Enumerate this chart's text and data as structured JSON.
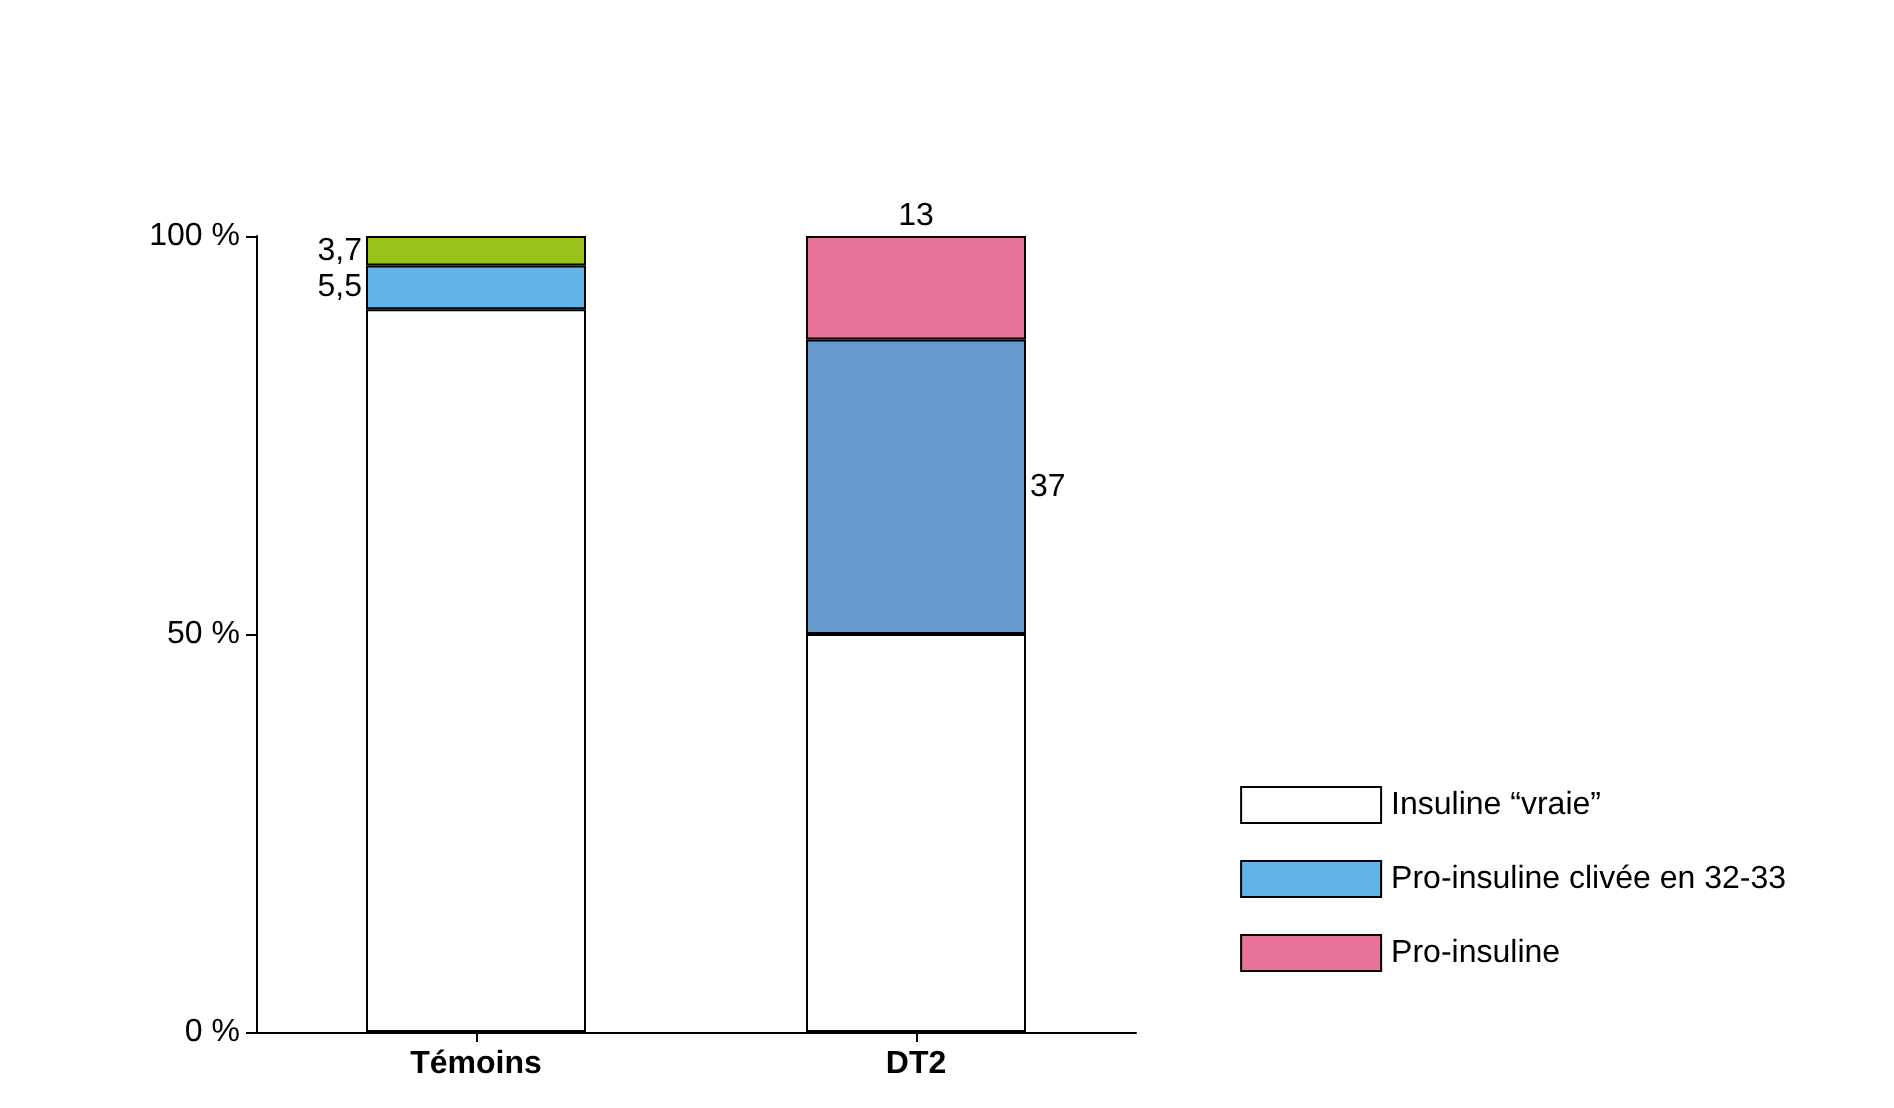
{
  "chart_data": {
    "type": "bar",
    "stacked": true,
    "categories": [
      "Témoins",
      "DT2"
    ],
    "series": [
      {
        "name": "Insuline “vraie”",
        "color": "#ffffff",
        "values": [
          90.8,
          50
        ],
        "value_labels": [
          null,
          null
        ]
      },
      {
        "name": "Pro-insuline clivée en 32-33",
        "color": "#62b3e6",
        "colors": [
          "#62b3e6",
          "#6699cc"
        ],
        "values": [
          5.5,
          37
        ],
        "value_labels": [
          "5,5",
          "37"
        ]
      },
      {
        "name": "Pro-insuline",
        "color": "#e9729a",
        "values": [
          null,
          13
        ],
        "value_labels": [
          null,
          "13"
        ]
      },
      {
        "color": "#99c21b",
        "values": [
          3.7,
          null
        ],
        "value_labels": [
          "3,7",
          null
        ]
      }
    ],
    "ylim": [
      0,
      100
    ],
    "yticks": [
      {
        "value": 0,
        "label": "0 %"
      },
      {
        "value": 50,
        "label": "50 %"
      },
      {
        "value": 100,
        "label": "100 %"
      }
    ],
    "grid": false,
    "legend": "bottom right"
  }
}
